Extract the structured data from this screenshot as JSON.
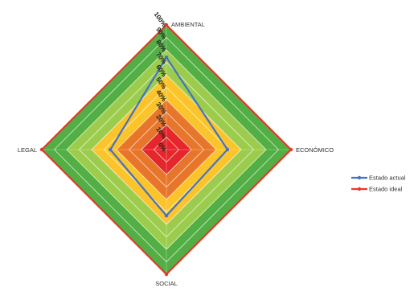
{
  "chart_data": {
    "type": "radar",
    "axes": [
      "AMBIENTAL",
      "ECONÓMICO",
      "SOCIAL",
      "LEGAL"
    ],
    "rlim": [
      0,
      100
    ],
    "tick_labels": [
      "0%",
      "10%",
      "20%",
      "30%",
      "40%",
      "50%",
      "60%",
      "70%",
      "80%",
      "90%",
      "100%"
    ],
    "series": [
      {
        "name": "Estado actual",
        "values": [
          74,
          49,
          53,
          45
        ],
        "color": "#4472c4"
      },
      {
        "name": "Estado ideal",
        "values": [
          100,
          100,
          100,
          100
        ],
        "color": "#e8372b"
      }
    ],
    "background_bands": [
      {
        "from": 0,
        "to": 20,
        "color": "#e6262b"
      },
      {
        "from": 20,
        "to": 40,
        "color": "#e8762a"
      },
      {
        "from": 40,
        "to": 60,
        "color": "#fbc42a"
      },
      {
        "from": 60,
        "to": 80,
        "color": "#9ccc4c"
      },
      {
        "from": 80,
        "to": 100,
        "color": "#52ae45"
      }
    ],
    "legend_position": "right",
    "grid": true
  }
}
